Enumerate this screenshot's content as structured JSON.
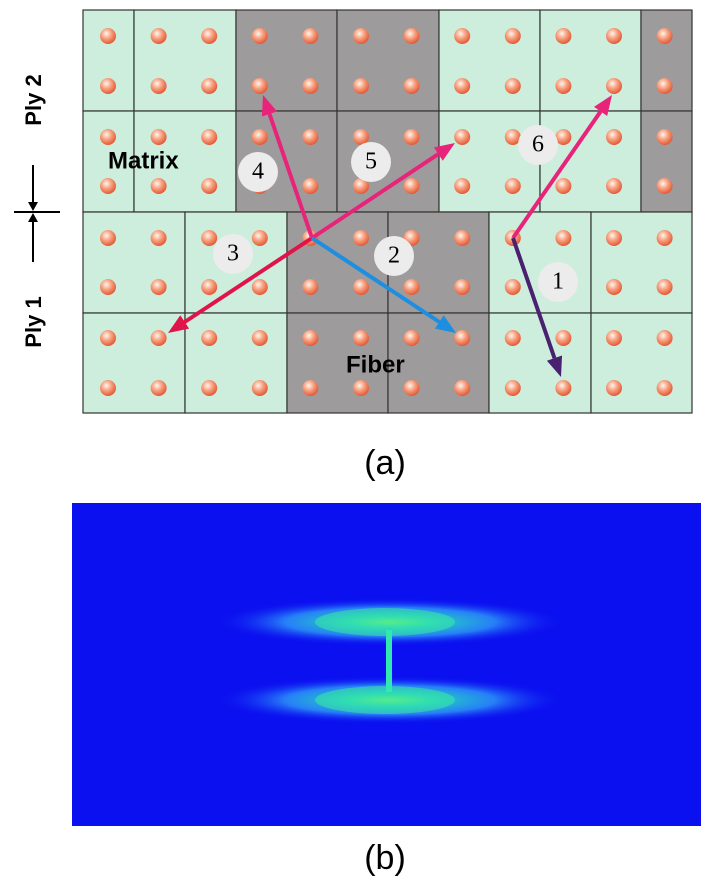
{
  "side_labels": {
    "ply2": "Ply 2",
    "ply1": "Ply 1"
  },
  "regions": {
    "matrix": "Matrix",
    "fiber": "Fiber"
  },
  "paths": [
    {
      "label": "1"
    },
    {
      "label": "2"
    },
    {
      "label": "3"
    },
    {
      "label": "4"
    },
    {
      "label": "5"
    },
    {
      "label": "6"
    }
  ],
  "captions": {
    "a": "(a)",
    "b": "(b)"
  }
}
